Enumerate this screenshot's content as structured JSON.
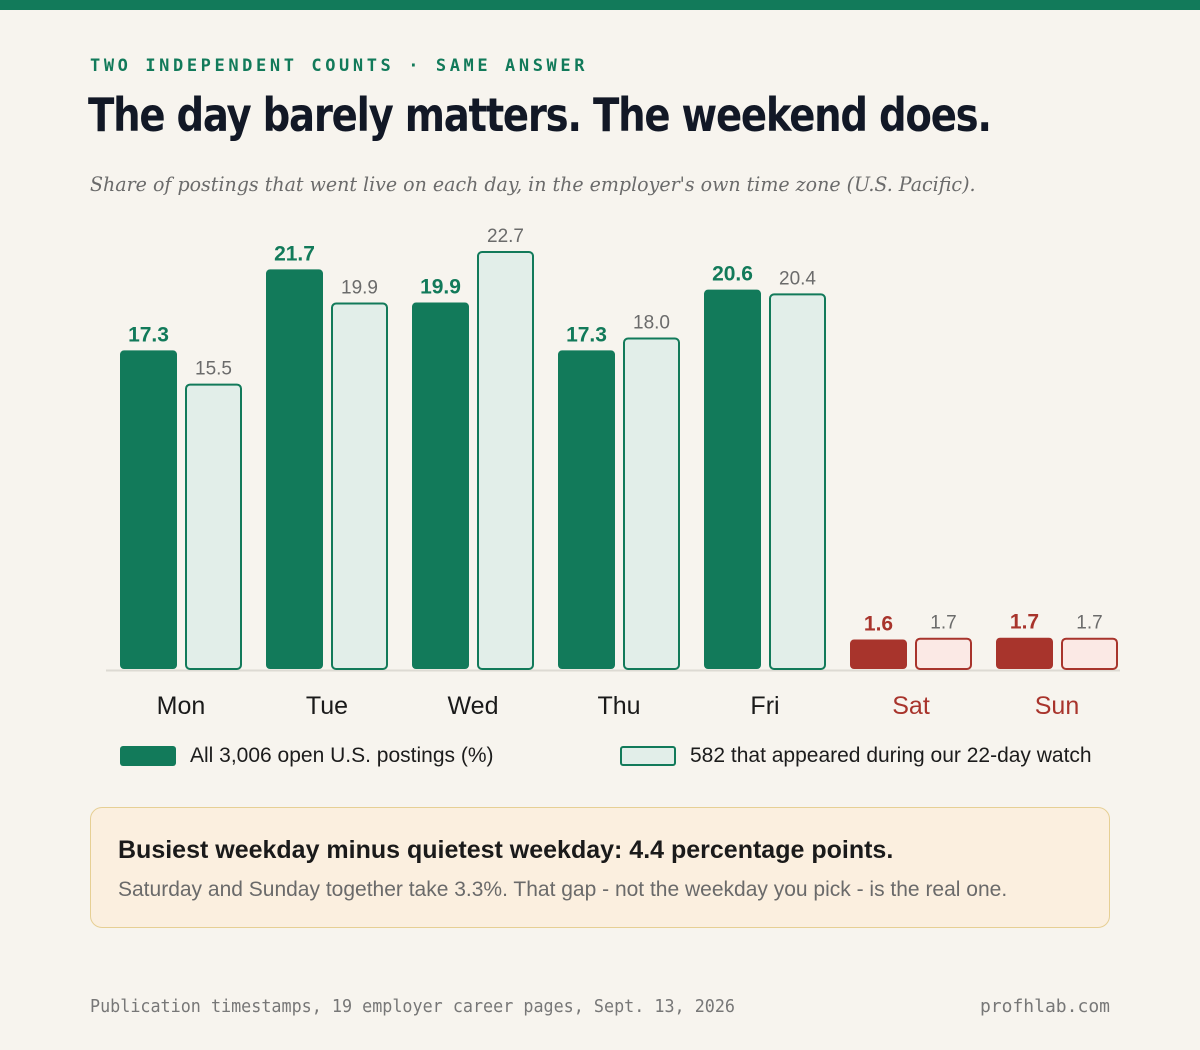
{
  "kicker": "TWO INDEPENDENT COUNTS · SAME ANSWER",
  "title": "The day barely matters. The weekend does.",
  "subtitle": "Share of postings that went live on each day, in the employer's own time zone (U.S. Pacific).",
  "colors": {
    "accent": "#127a5a",
    "accent_light": "#e2eee9",
    "weekend": "#a8342c",
    "weekend_light": "#fbe9e5",
    "background": "#f7f4ee",
    "callout_bg": "#fbefdf"
  },
  "legend": {
    "all": "All 3,006 open U.S. postings (%)",
    "watch": "582 that appeared during our 22-day watch"
  },
  "callout": {
    "headline": "Busiest weekday minus quietest weekday: 4.4 percentage points.",
    "body": "Saturday and Sunday together take 3.3%. That gap - not the weekday you pick - is the real one."
  },
  "footer": {
    "source": "Publication timestamps, 19 employer career pages, Sept. 13, 2026",
    "site": "profhlab.com"
  },
  "chart_data": {
    "type": "bar",
    "categories": [
      "Mon",
      "Tue",
      "Wed",
      "Thu",
      "Fri",
      "Sat",
      "Sun"
    ],
    "weekend_categories": [
      "Sat",
      "Sun"
    ],
    "series": [
      {
        "name": "All 3,006 open U.S. postings (%)",
        "style": "solid",
        "values": [
          17.3,
          21.7,
          19.9,
          17.3,
          20.6,
          1.6,
          1.7
        ]
      },
      {
        "name": "582 that appeared during our 22-day watch",
        "style": "outline",
        "values": [
          15.5,
          19.9,
          22.7,
          18.0,
          20.4,
          1.7,
          1.7
        ]
      }
    ],
    "ylim": [
      0,
      22.7
    ],
    "grid": false,
    "legend_position": "bottom"
  }
}
